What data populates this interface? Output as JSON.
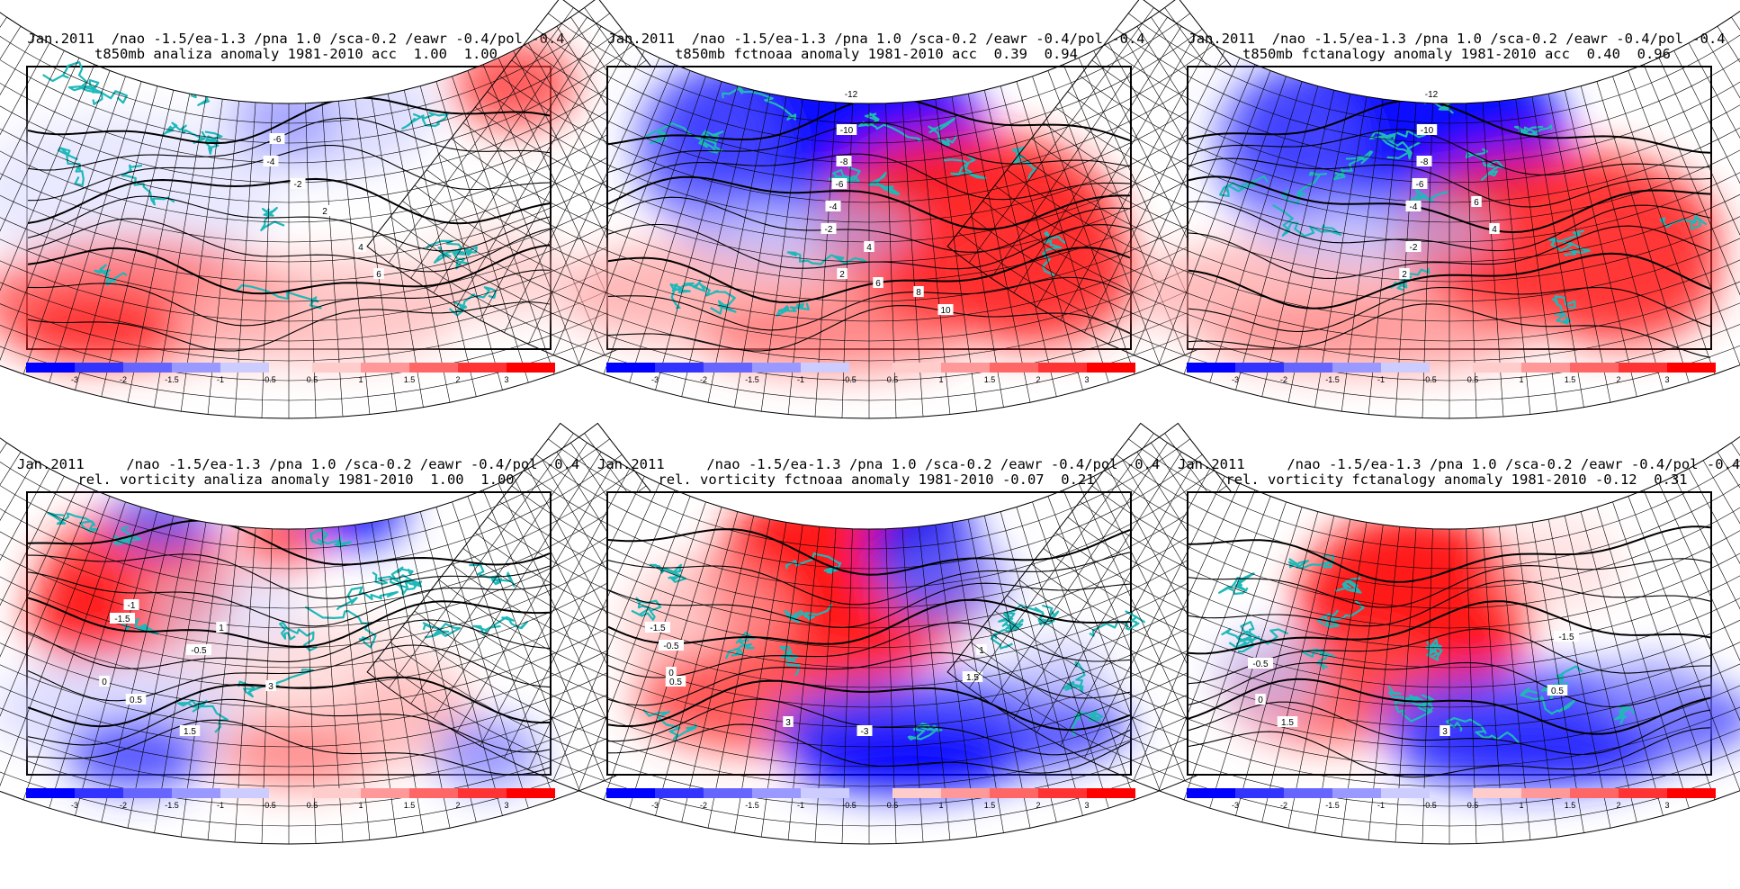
{
  "colorbar": {
    "colors": [
      "#0000ff",
      "#3333ff",
      "#6666ff",
      "#9999ff",
      "#ccccff",
      "#ffffff",
      "#ffcccc",
      "#ff9999",
      "#ff6666",
      "#ff3333",
      "#ff0000"
    ],
    "ticks": [
      "-3",
      "-2",
      "-1.5",
      "-1",
      "-0.5",
      "0.5",
      "1",
      "1.5",
      "2",
      "3"
    ]
  },
  "panels": [
    {
      "title1": "Jan.2011  /nao -1.5/ea-1.3 /pna 1.0 /sca-0.2 /eawr -0.4/pol -0.4",
      "title2": "t850mb analiza anomaly 1981-2010 acc  1.00  1.00",
      "labels": [
        "-6",
        "-4",
        "-2",
        "2",
        "4",
        "6"
      ]
    },
    {
      "title1": "Jan.2011  /nao -1.5/ea-1.3 /pna 1.0 /sca-0.2 /eawr -0.4/pol -0.4",
      "title2": "t850mb fctnoaa anomaly 1981-2010 acc  0.39  0.94",
      "labels": [
        "-12",
        "-10",
        "-8",
        "-6",
        "-4",
        "-2",
        "2",
        "4",
        "6",
        "8",
        "10"
      ]
    },
    {
      "title1": "Jan.2011  /nao -1.5/ea-1.3 /pna 1.0 /sca-0.2 /eawr -0.4/pol -0.4",
      "title2": "t850mb fctanalogy anomaly 1981-2010 acc  0.40  0.96",
      "labels": [
        "-12",
        "-10",
        "-8",
        "-6",
        "-4",
        "-2",
        "2",
        "4",
        "6"
      ]
    },
    {
      "title1": "Jan.2011     /nao -1.5/ea-1.3 /pna 1.0 /sca-0.2 /eawr -0.4/pol -0.4",
      "title2": "rel. vorticity analiza anomaly 1981-2010  1.00  1.00",
      "labels": [
        "-1",
        "-1.5",
        "-0.5",
        "0",
        "0.5",
        "1",
        "1.5",
        "3"
      ]
    },
    {
      "title1": "Jan.2011     /nao -1.5/ea-1.3 /pna 1.0 /sca-0.2 /eawr -0.4/pol -0.4",
      "title2": "rel. vorticity fctnoaa anomaly 1981-2010 -0.07  0.21",
      "labels": [
        "-1.5",
        "-0.5",
        "0",
        "0.5",
        "1",
        "1.5",
        "3",
        "-3"
      ]
    },
    {
      "title1": "Jan.2011     /nao -1.5/ea-1.3 /pna 1.0 /sca-0.2 /eawr -0.4/pol -0.4",
      "title2": "rel. vorticity fctanalogy anomaly 1981-2010 -0.12  0.31",
      "labels": [
        "-0.5",
        "0",
        "0.5",
        "1.5",
        "3",
        "-1.5"
      ]
    }
  ]
}
